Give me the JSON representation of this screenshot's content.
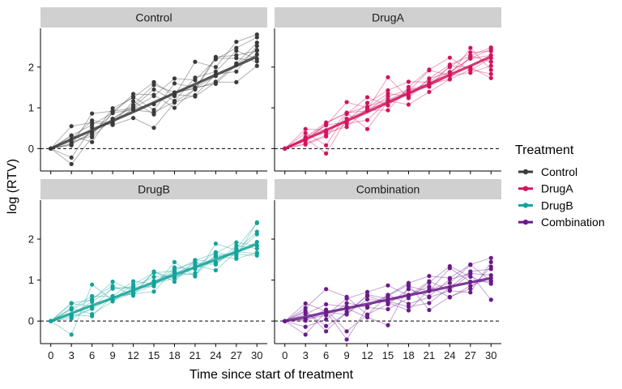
{
  "chart_data": {
    "type": "line",
    "layout": "facet-grid 2x2",
    "xlabel": "Time since start of treatment",
    "ylabel": "log (RTV)",
    "x_ticks": [
      0,
      3,
      6,
      9,
      12,
      15,
      18,
      21,
      24,
      27,
      30
    ],
    "xlim": [
      -1.5,
      31.5
    ],
    "y_ticks": [
      0,
      1,
      2
    ],
    "ylim": [
      -0.55,
      2.95
    ],
    "reference_line": {
      "y": 0,
      "style": "dashed"
    },
    "legend": {
      "title": "Treatment",
      "position": "right",
      "entries": [
        "Control",
        "DrugA",
        "DrugB",
        "Combination"
      ]
    },
    "colors": {
      "Control": "#3b3b3b",
      "DrugA": "#d1155e",
      "DrugB": "#14a39a",
      "Combination": "#6a1b8a",
      "strip_bg": "#d0d0d0"
    },
    "panels": [
      {
        "name": "Control",
        "mean": [
          [
            0,
            0
          ],
          [
            3,
            0.23
          ],
          [
            6,
            0.45
          ],
          [
            9,
            0.68
          ],
          [
            12,
            0.9
          ],
          [
            15,
            1.13
          ],
          [
            18,
            1.36
          ],
          [
            21,
            1.58
          ],
          [
            24,
            1.81
          ],
          [
            27,
            2.03
          ],
          [
            30,
            2.26
          ]
        ],
        "individuals": [
          [
            0.0,
            -0.38,
            0.28,
            0.73,
            1.02,
            1.45,
            1.17,
            1.74,
            1.89,
            2.4,
            2.2
          ],
          [
            0.0,
            -0.22,
            0.51,
            0.64,
            0.98,
            1.09,
            1.36,
            1.49,
            1.78,
            2.06,
            2.42
          ],
          [
            0.0,
            0.12,
            0.37,
            0.87,
            1.34,
            1.32,
            1.0,
            1.47,
            1.64,
            2.09,
            2.6
          ],
          [
            0.0,
            0.23,
            0.69,
            0.61,
            1.16,
            0.84,
            1.33,
            1.28,
            1.63,
            1.63,
            2.03
          ],
          [
            0.0,
            0.08,
            0.86,
            0.92,
            0.99,
            1.29,
            1.72,
            1.68,
            2.19,
            2.47,
            2.73
          ],
          [
            0.0,
            0.32,
            0.58,
            0.88,
            0.95,
            0.89,
            1.15,
            1.45,
            2.21,
            2.22,
            2.14
          ],
          [
            0.0,
            0.1,
            0.41,
            0.73,
            1.07,
            1.56,
            1.38,
            1.47,
            2.25,
            2.29,
            2.4
          ],
          [
            0.0,
            0.32,
            0.16,
            0.91,
            1.27,
            0.95,
            1.6,
            1.5,
            1.59,
            2.05,
            2.31
          ],
          [
            0.0,
            0.17,
            0.31,
            0.99,
            1.25,
            1.63,
            1.29,
            2.13,
            2.0,
            2.62,
            2.8
          ],
          [
            0.0,
            0.55,
            0.64,
            0.58,
            0.75,
            0.51,
            1.13,
            1.31,
            1.82,
            1.89,
            2.52
          ]
        ]
      },
      {
        "name": "DrugA",
        "mean": [
          [
            0,
            0
          ],
          [
            3,
            0.23
          ],
          [
            6,
            0.45
          ],
          [
            9,
            0.68
          ],
          [
            12,
            0.9
          ],
          [
            15,
            1.13
          ],
          [
            18,
            1.36
          ],
          [
            21,
            1.58
          ],
          [
            24,
            1.81
          ],
          [
            27,
            2.03
          ],
          [
            30,
            2.26
          ]
        ],
        "individuals": [
          [
            0.0,
            0.48,
            0.45,
            0.67,
            1.12,
            1.43,
            1.64,
            1.63,
            2.0,
            2.36,
            2.39
          ],
          [
            0.0,
            0.25,
            -0.12,
            0.73,
            0.95,
            0.94,
            1.51,
            1.94,
            2.23,
            1.92,
            2.22
          ],
          [
            0.0,
            0.1,
            0.3,
            0.88,
            0.48,
            1.15,
            1.35,
            1.53,
            1.79,
            1.86,
            2.03
          ],
          [
            0.0,
            0.21,
            0.57,
            1.14,
            1.0,
            1.35,
            1.28,
            1.72,
            1.87,
            2.21,
            2.44
          ],
          [
            0.0,
            0.18,
            0.62,
            0.88,
            0.93,
            1.28,
            1.44,
            1.52,
            2.03,
            1.99,
            1.73
          ],
          [
            0.0,
            0.38,
            0.08,
            0.85,
            1.26,
            1.06,
            1.44,
            1.59,
            1.7,
            1.94,
            1.83
          ],
          [
            0.0,
            0.23,
            0.4,
            0.53,
            0.96,
            1.17,
            1.08,
            1.39,
            1.7,
            2.28,
            2.48
          ],
          [
            0.0,
            0.26,
            0.58,
            0.65,
            0.96,
            1.75,
            1.24,
            1.72,
            2.06,
            2.27,
            2.13
          ],
          [
            0.0,
            0.12,
            0.33,
            0.61,
            0.7,
            1.18,
            1.37,
            1.61,
            1.88,
            2.21,
            2.29
          ],
          [
            0.0,
            0.28,
            0.64,
            0.87,
            1.03,
            1.2,
            1.41,
            1.92,
            1.8,
            2.47,
            1.93
          ]
        ]
      },
      {
        "name": "DrugB",
        "mean": [
          [
            0,
            0
          ],
          [
            3,
            0.19
          ],
          [
            6,
            0.38
          ],
          [
            9,
            0.56
          ],
          [
            12,
            0.75
          ],
          [
            15,
            0.94
          ],
          [
            18,
            1.13
          ],
          [
            21,
            1.31
          ],
          [
            24,
            1.5
          ],
          [
            27,
            1.69
          ],
          [
            30,
            1.88
          ]
        ],
        "individuals": [
          [
            0.0,
            0.44,
            0.52,
            0.96,
            0.75,
            0.98,
            1.19,
            1.12,
            1.57,
            1.67,
            2.12
          ],
          [
            0.0,
            0.11,
            0.3,
            0.57,
            0.68,
            0.88,
            1.31,
            1.27,
            1.59,
            1.52,
            1.67
          ],
          [
            0.0,
            0.28,
            0.54,
            0.86,
            0.62,
            1.21,
            0.96,
            1.49,
            1.44,
            1.69,
            1.65
          ],
          [
            0.0,
            0.31,
            0.17,
            0.48,
            0.82,
            0.9,
            1.16,
            1.4,
            1.38,
            1.77,
            2.39
          ],
          [
            0.0,
            -0.33,
            0.89,
            0.51,
            0.68,
            1.2,
            1.04,
            1.31,
            1.68,
            1.58,
            2.41
          ],
          [
            0.0,
            0.15,
            0.12,
            0.61,
            0.97,
            0.91,
            1.05,
            1.36,
            1.24,
            1.69,
            1.93
          ],
          [
            0.0,
            0.43,
            0.36,
            0.53,
            0.89,
            1.18,
            1.22,
            1.48,
            1.66,
            1.92,
            1.84
          ],
          [
            0.0,
            0.06,
            0.31,
            0.81,
            0.8,
            0.85,
            1.44,
            1.09,
            1.89,
            1.73,
            2.18
          ],
          [
            0.0,
            0.32,
            0.61,
            0.59,
            0.66,
            0.72,
            1.27,
            1.43,
            1.41,
            1.84,
            1.77
          ],
          [
            0.0,
            0.16,
            0.47,
            0.79,
            0.84,
            1.08,
            1.1,
            1.17,
            1.61,
            1.63,
            1.6
          ]
        ]
      },
      {
        "name": "Combination",
        "mean": [
          [
            0,
            0
          ],
          [
            3,
            0.1
          ],
          [
            6,
            0.21
          ],
          [
            9,
            0.31
          ],
          [
            12,
            0.42
          ],
          [
            15,
            0.52
          ],
          [
            18,
            0.63
          ],
          [
            21,
            0.73
          ],
          [
            24,
            0.84
          ],
          [
            27,
            0.94
          ],
          [
            30,
            1.05
          ]
        ],
        "individuals": [
          [
            0.0,
            0.32,
            0.78,
            0.59,
            0.15,
            0.63,
            0.93,
            1.1,
            1.05,
            1.38,
            1.54
          ],
          [
            0.0,
            -0.33,
            0.24,
            -0.45,
            0.33,
            0.29,
            0.56,
            0.94,
            1.34,
            1.08,
            0.91
          ],
          [
            0.0,
            0.23,
            -0.12,
            0.18,
            0.53,
            0.48,
            0.35,
            0.44,
            0.82,
            1.21,
            1.27
          ],
          [
            0.0,
            0.05,
            0.14,
            0.55,
            0.71,
            0.87,
            0.62,
            0.97,
            0.75,
            1.15,
            0.52
          ],
          [
            0.0,
            0.43,
            0.24,
            0.31,
            0.09,
            -0.1,
            0.85,
            0.73,
            1.29,
            0.96,
            0.97
          ],
          [
            0.0,
            -0.14,
            0.04,
            0.44,
            0.35,
            0.64,
            0.42,
            0.58,
            0.74,
            0.7,
            1.44
          ],
          [
            0.0,
            0.05,
            0.28,
            -0.25,
            0.16,
            0.41,
            0.78,
            0.6,
            1.02,
            1.16,
            1.12
          ],
          [
            0.0,
            0.25,
            -0.25,
            0.23,
            0.61,
            0.45,
            0.26,
            0.77,
            0.93,
            1.37,
            0.98
          ],
          [
            0.0,
            0.17,
            0.41,
            0.35,
            0.36,
            0.61,
            0.89,
            0.27,
            0.59,
            0.79,
            1.33
          ],
          [
            0.0,
            0.01,
            0.22,
            0.16,
            0.64,
            0.55,
            0.64,
            0.84,
            0.58,
            0.86,
            1.05
          ]
        ]
      }
    ]
  }
}
